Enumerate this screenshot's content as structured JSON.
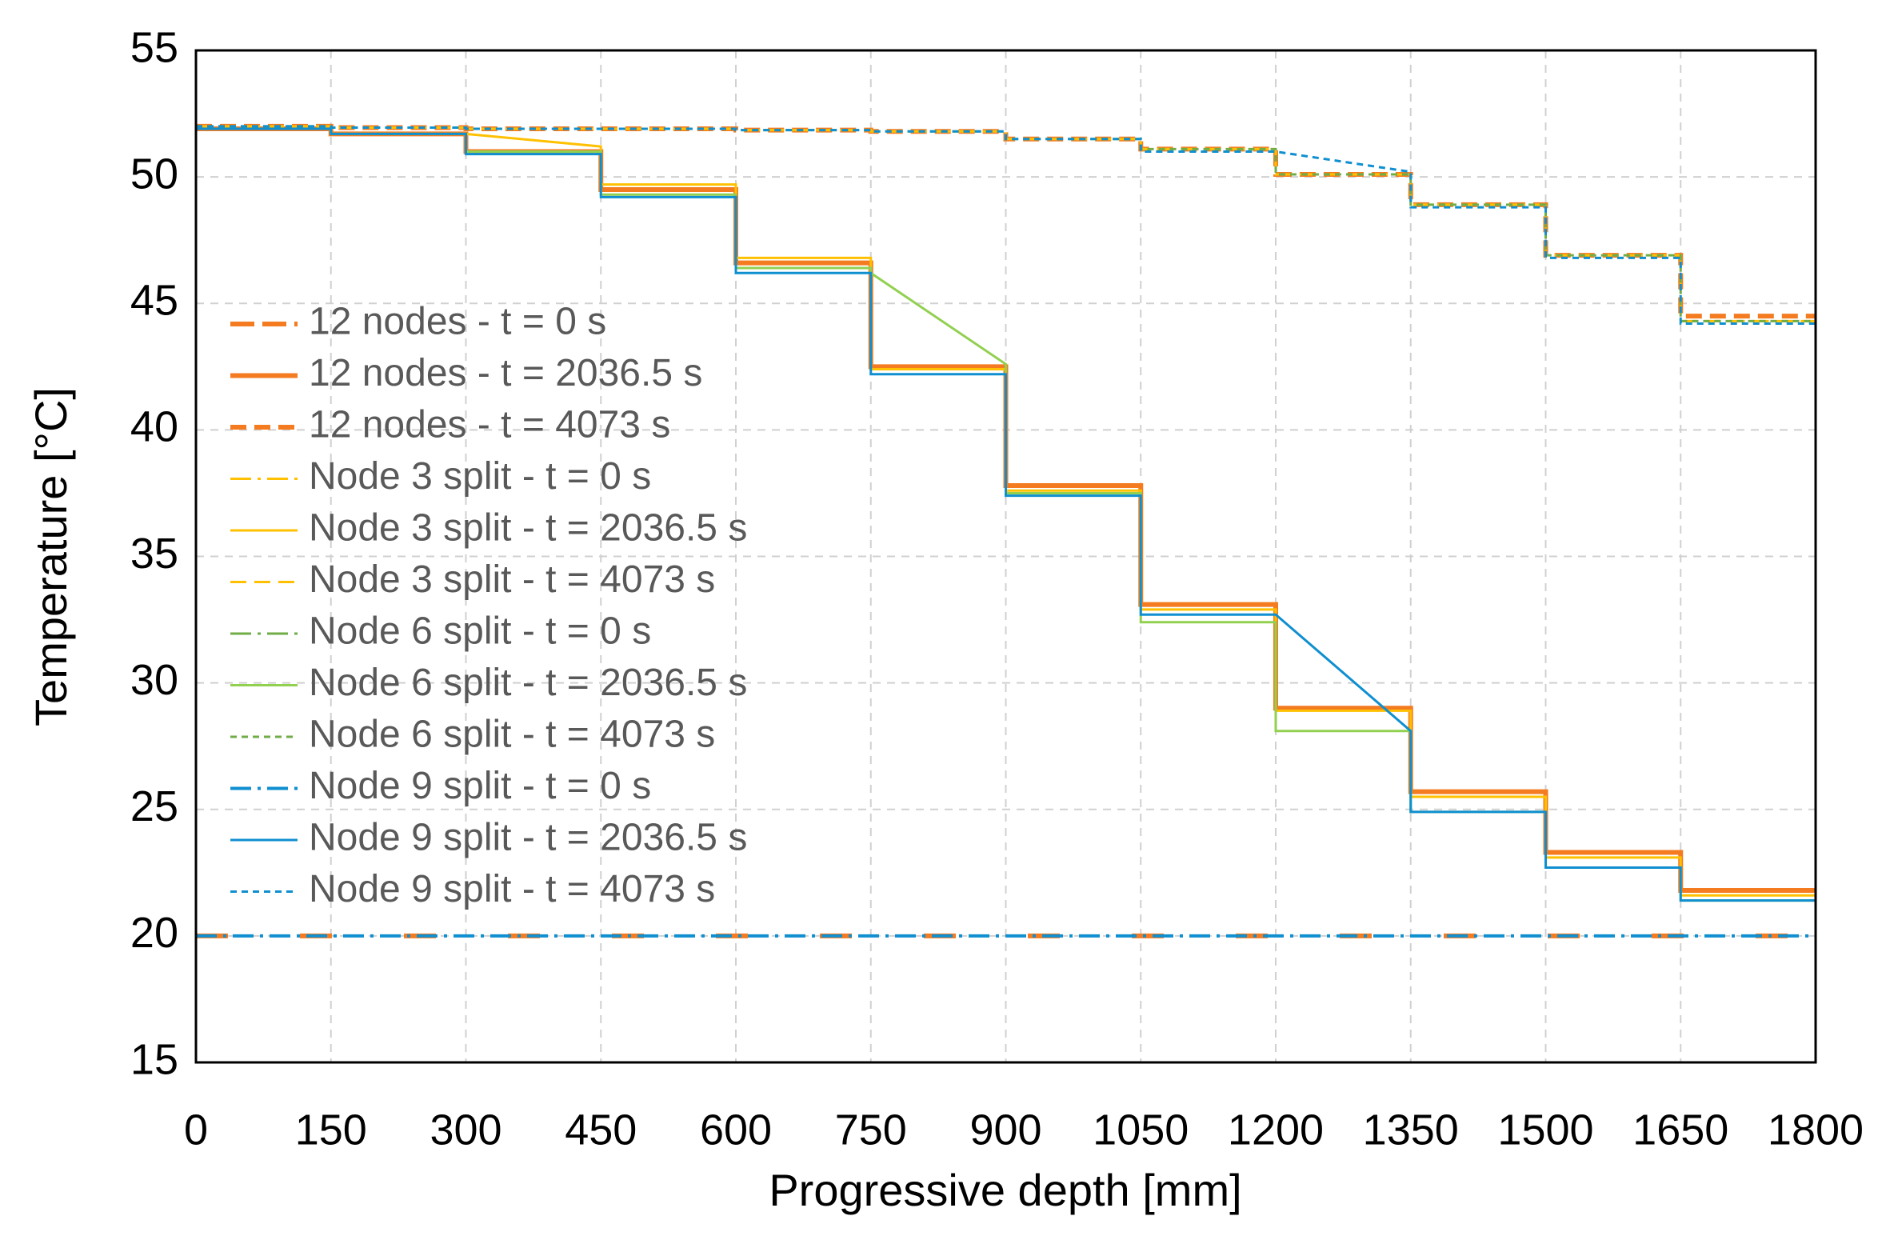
{
  "chart_data": {
    "type": "line",
    "xlabel": "Progressive depth [mm]",
    "ylabel": "Temperature [°C]",
    "xlim": [
      0,
      1800
    ],
    "xticks": [
      0,
      150,
      300,
      450,
      600,
      750,
      900,
      1050,
      1200,
      1350,
      1500,
      1650,
      1800
    ],
    "ylim": [
      15,
      55
    ],
    "yticks": [
      15,
      20,
      25,
      30,
      35,
      40,
      45,
      50,
      55
    ],
    "grid": true,
    "legend": "left",
    "x": [
      0,
      150,
      150,
      300,
      300,
      450,
      450,
      600,
      600,
      750,
      750,
      900,
      900,
      1050,
      1050,
      1200,
      1200,
      1350,
      1350,
      1500,
      1500,
      1650,
      1650,
      1800
    ],
    "series": [
      {
        "name": "12 nodes - t = 0 s",
        "color": "#f47b20",
        "dash": "longdash",
        "width": 6,
        "x": [
          0,
          1800
        ],
        "values": [
          20,
          20
        ]
      },
      {
        "name": "12 nodes - t = 2036.5 s",
        "color": "#f47b20",
        "dash": "solid",
        "width": 6,
        "values": [
          51.9,
          51.9,
          51.7,
          51.7,
          51.0,
          51.0,
          49.5,
          49.5,
          46.6,
          46.6,
          42.5,
          42.5,
          37.8,
          37.8,
          33.1,
          33.1,
          29.0,
          29.0,
          25.7,
          25.7,
          23.3,
          23.3,
          21.8,
          21.8
        ]
      },
      {
        "name": "12 nodes - t = 4073 s",
        "color": "#f47b20",
        "dash": "dashed",
        "width": 6,
        "values": [
          52.0,
          52.0,
          51.95,
          51.95,
          51.9,
          51.9,
          51.9,
          51.9,
          51.85,
          51.85,
          51.8,
          51.8,
          51.5,
          51.5,
          51.1,
          51.1,
          50.1,
          50.1,
          48.9,
          48.9,
          46.9,
          46.9,
          44.5,
          44.5
        ]
      },
      {
        "name": "Node 3 split - t = 0 s",
        "color": "#ffc000",
        "dash": "dashdot",
        "width": 3,
        "x": [
          0,
          1800
        ],
        "values": [
          20,
          20
        ]
      },
      {
        "name": "Node 3 split - t = 2036.5 s",
        "color": "#ffc000",
        "dash": "solid",
        "width": 3,
        "values": [
          51.9,
          51.9,
          51.7,
          51.7,
          51.7,
          51.2,
          49.7,
          49.7,
          46.8,
          46.8,
          42.4,
          42.4,
          37.6,
          37.6,
          32.9,
          32.9,
          28.9,
          28.9,
          25.5,
          25.5,
          23.1,
          23.1,
          21.6,
          21.6
        ]
      },
      {
        "name": "Node 3 split - t = 4073 s",
        "color": "#ffc000",
        "dash": "dashed",
        "width": 3,
        "values": [
          52.0,
          52.0,
          51.95,
          51.95,
          51.9,
          51.9,
          51.9,
          51.9,
          51.85,
          51.85,
          51.8,
          51.8,
          51.5,
          51.5,
          51.1,
          51.1,
          50.1,
          50.1,
          48.9,
          48.9,
          46.9,
          46.9,
          44.3,
          44.3
        ]
      },
      {
        "name": "Node 6 split - t = 0 s",
        "color": "#70ad47",
        "dash": "dashdot",
        "width": 3,
        "x": [
          0,
          1800
        ],
        "values": [
          20,
          20
        ]
      },
      {
        "name": "Node 6 split - t = 2036.5 s",
        "color": "#92d050",
        "dash": "solid",
        "width": 3,
        "values": [
          51.9,
          51.9,
          51.7,
          51.7,
          51.0,
          51.0,
          49.3,
          49.3,
          46.4,
          46.4,
          46.2,
          42.6,
          37.5,
          37.5,
          32.4,
          32.4,
          28.1,
          28.1,
          24.9,
          24.9,
          22.7,
          22.7,
          21.4,
          21.4
        ]
      },
      {
        "name": "Node 6 split - t = 4073 s",
        "color": "#70ad47",
        "dash": "dotted",
        "width": 3,
        "values": [
          52.0,
          52.0,
          51.95,
          51.95,
          51.9,
          51.9,
          51.9,
          51.9,
          51.85,
          51.85,
          51.8,
          51.8,
          51.5,
          51.5,
          51.1,
          51.1,
          50.1,
          50.1,
          48.9,
          48.9,
          46.9,
          46.9,
          44.3,
          44.3
        ]
      },
      {
        "name": "Node 9 split - t = 0 s",
        "color": "#0f8fd0",
        "dash": "dashdot",
        "width": 4,
        "x": [
          0,
          1800
        ],
        "values": [
          20,
          20
        ]
      },
      {
        "name": "Node 9 split - t = 2036.5 s",
        "color": "#0f8fd0",
        "dash": "solid",
        "width": 3,
        "values": [
          51.9,
          51.9,
          51.7,
          51.7,
          50.9,
          50.9,
          49.2,
          49.2,
          46.2,
          46.2,
          42.2,
          42.2,
          37.4,
          37.4,
          32.7,
          32.7,
          32.7,
          28.1,
          24.9,
          24.9,
          22.7,
          22.7,
          21.4,
          21.4
        ]
      },
      {
        "name": "Node 9 split - t = 4073 s",
        "color": "#0f8fd0",
        "dash": "dotted",
        "width": 3,
        "values": [
          52.0,
          52.0,
          51.95,
          51.95,
          51.9,
          51.9,
          51.9,
          51.9,
          51.85,
          51.85,
          51.8,
          51.8,
          51.5,
          51.5,
          51.0,
          51.0,
          51.0,
          50.2,
          48.8,
          48.8,
          46.8,
          46.8,
          44.2,
          44.2
        ]
      }
    ]
  }
}
